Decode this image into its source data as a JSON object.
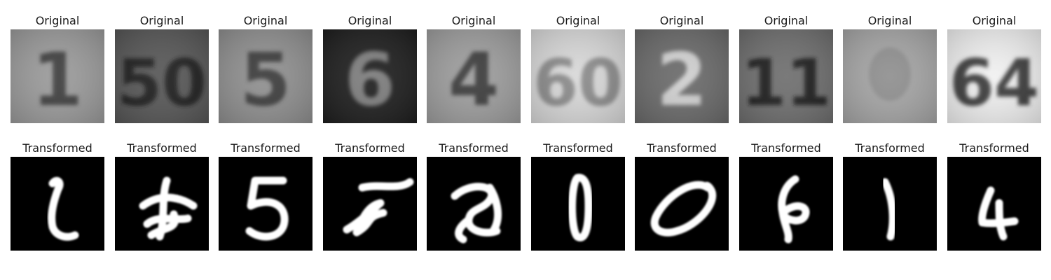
{
  "figure": {
    "rows": [
      {
        "name": "original",
        "panels": [
          {
            "title": "Original",
            "digit": "1",
            "icon": "svhn-digit-photo",
            "bg": "#9a9a9a",
            "fg": "#3c3c3c"
          },
          {
            "title": "Original",
            "digit": "50",
            "icon": "svhn-digit-photo",
            "bg": "#565656",
            "fg": "#1f1f1f"
          },
          {
            "title": "Original",
            "digit": "5",
            "icon": "svhn-digit-photo",
            "bg": "#8f8f8f",
            "fg": "#3a3a3a"
          },
          {
            "title": "Original",
            "digit": "6",
            "icon": "svhn-digit-photo",
            "bg": "#1e1e1e",
            "fg": "#7b7b7b"
          },
          {
            "title": "Original",
            "digit": "4",
            "icon": "svhn-digit-photo",
            "bg": "#9d9d9d",
            "fg": "#3a3a3a"
          },
          {
            "title": "Original",
            "digit": "60",
            "icon": "svhn-digit-photo",
            "bg": "#d8d8d8",
            "fg": "#8a8a8a"
          },
          {
            "title": "Original",
            "digit": "2",
            "icon": "svhn-digit-photo",
            "bg": "#6a6a6a",
            "fg": "#cfcfcf"
          },
          {
            "title": "Original",
            "digit": "11",
            "icon": "svhn-digit-photo",
            "bg": "#6e6e6e",
            "fg": "#1c1c1c"
          },
          {
            "title": "Original",
            "digit": "",
            "icon": "svhn-digit-photo",
            "bg": "#a5a5a5",
            "fg": "#8f8f8f"
          },
          {
            "title": "Original",
            "digit": "64",
            "icon": "svhn-digit-photo",
            "bg": "#f0f0f0",
            "fg": "#3a3a3a"
          }
        ]
      },
      {
        "name": "transformed",
        "panels": [
          {
            "title": "Transformed",
            "shape": "l-stroke",
            "icon": "mnist-digit-render"
          },
          {
            "title": "Transformed",
            "shape": "tangle-stroke",
            "icon": "mnist-digit-render"
          },
          {
            "title": "Transformed",
            "shape": "five",
            "icon": "mnist-digit-render"
          },
          {
            "title": "Transformed",
            "shape": "slanted-five",
            "icon": "mnist-digit-render"
          },
          {
            "title": "Transformed",
            "shape": "two-loop",
            "icon": "mnist-digit-render"
          },
          {
            "title": "Transformed",
            "shape": "zero-narrow",
            "icon": "mnist-digit-render"
          },
          {
            "title": "Transformed",
            "shape": "zero-wide",
            "icon": "mnist-digit-render"
          },
          {
            "title": "Transformed",
            "shape": "six-curl",
            "icon": "mnist-digit-render"
          },
          {
            "title": "Transformed",
            "shape": "one",
            "icon": "mnist-digit-render"
          },
          {
            "title": "Transformed",
            "shape": "four",
            "icon": "mnist-digit-render"
          }
        ]
      }
    ]
  }
}
